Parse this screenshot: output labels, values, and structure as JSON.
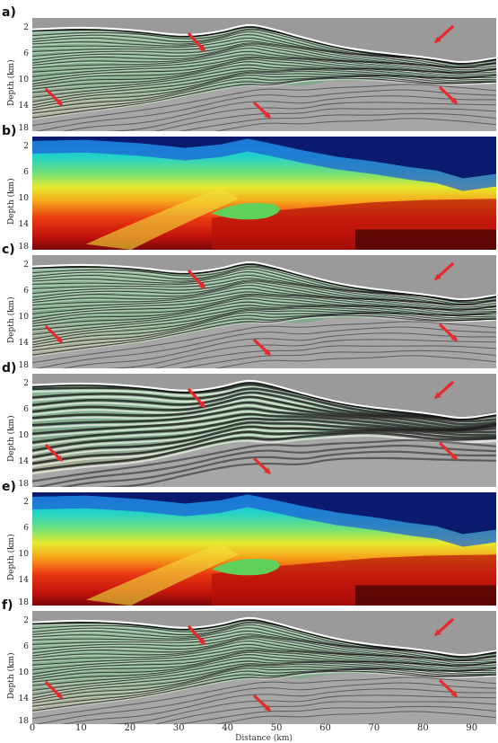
{
  "figure": {
    "panels": [
      {
        "letter": "a)",
        "kind": "image"
      },
      {
        "letter": "b)",
        "kind": "velocity"
      },
      {
        "letter": "c)",
        "kind": "image"
      },
      {
        "letter": "d)",
        "kind": "image-low"
      },
      {
        "letter": "e)",
        "kind": "velocity"
      },
      {
        "letter": "f)",
        "kind": "image"
      }
    ],
    "ylabel": "Depth (km)",
    "yticks": [
      "2",
      "6",
      "10",
      "14",
      "18"
    ],
    "xlabel": "Distance (km)",
    "xticks": [
      "0",
      "10",
      "20",
      "30",
      "40",
      "50",
      "60",
      "70",
      "80",
      "90"
    ],
    "colors": {
      "arrow": "#e8282a",
      "water_dark": "#0a1a6e",
      "sediment": "#7fa98a",
      "basement": "#a6a6a6"
    }
  }
}
